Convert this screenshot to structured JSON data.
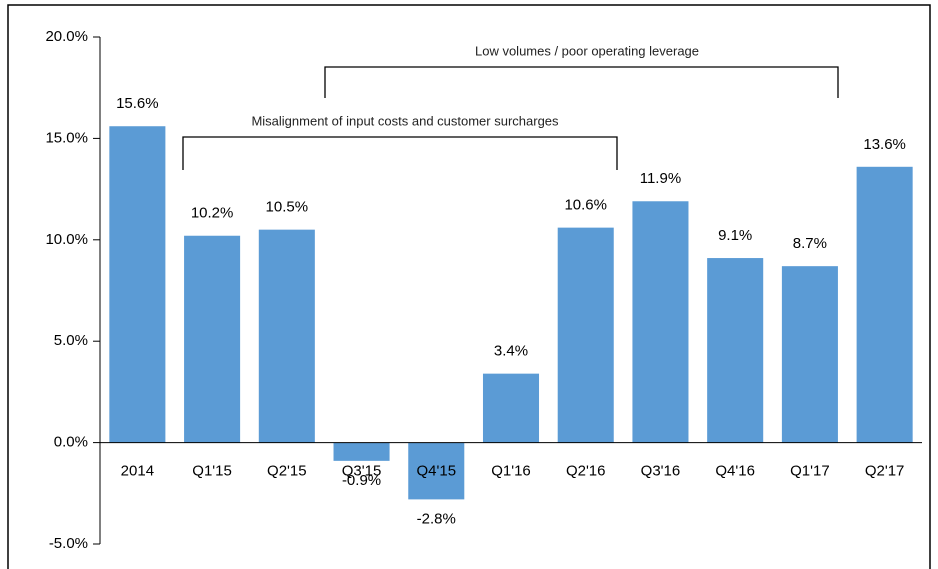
{
  "chart_data": {
    "type": "bar",
    "categories": [
      "2014",
      "Q1'15",
      "Q2'15",
      "Q3'15",
      "Q4'15",
      "Q1'16",
      "Q2'16",
      "Q3'16",
      "Q4'16",
      "Q1'17",
      "Q2'17"
    ],
    "values": [
      15.6,
      10.2,
      10.5,
      -0.9,
      -2.8,
      3.4,
      10.6,
      11.9,
      9.1,
      8.7,
      13.6
    ],
    "value_labels": [
      "15.6%",
      "10.2%",
      "10.5%",
      "-0.9%",
      "-2.8%",
      "3.4%",
      "10.6%",
      "11.9%",
      "9.1%",
      "8.7%",
      "13.6%"
    ],
    "color": "#5b9bd5",
    "ylim": [
      -5,
      20
    ],
    "yticks": [
      {
        "value": -5,
        "label": "-5.0%"
      },
      {
        "value": 0,
        "label": "0.0%"
      },
      {
        "value": 5,
        "label": "5.0%"
      },
      {
        "value": 10,
        "label": "10.0%"
      },
      {
        "value": 15,
        "label": "15.0%"
      },
      {
        "value": 20,
        "label": "20.0%"
      }
    ],
    "grid": false,
    "annotations": [
      "Low volumes / poor operating leverage",
      "Misalignment of input costs and customer surcharges"
    ]
  }
}
